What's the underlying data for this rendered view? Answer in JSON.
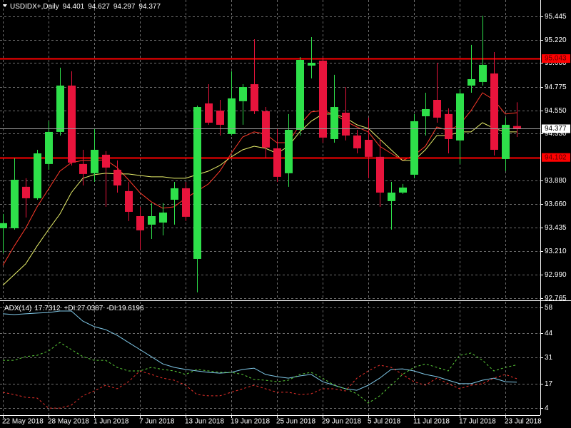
{
  "chart_data": [
    {
      "type": "candlestick",
      "title": "USDIDX+,Daily",
      "ohlc": {
        "open": [
          93.429,
          93.429,
          93.823,
          93.714,
          94.04,
          94.345,
          94.786,
          94.04,
          93.952,
          94.128,
          93.985,
          93.782,
          93.544,
          93.463,
          93.483,
          93.7,
          93.809,
          93.137,
          94.616,
          94.548,
          94.325,
          94.637,
          94.799,
          94.542,
          94.189,
          93.952,
          94.365,
          94.976,
          95.023,
          94.277,
          94.528,
          94.311,
          94.27,
          94.108,
          93.687,
          93.768,
          93.938,
          94.494,
          94.65,
          94.515,
          94.264,
          94.786,
          94.82,
          94.901,
          94.087,
          94.401
        ],
        "high": [
          93.565,
          94.094,
          93.904,
          94.175,
          94.447,
          94.956,
          94.922,
          94.175,
          94.379,
          94.162,
          94.074,
          93.87,
          93.633,
          93.667,
          93.667,
          93.87,
          93.87,
          94.596,
          94.799,
          94.65,
          94.922,
          94.799,
          95.227,
          94.582,
          94.379,
          94.515,
          95.057,
          95.247,
          95.057,
          94.888,
          94.772,
          94.365,
          94.481,
          94.277,
          93.87,
          93.85,
          94.515,
          94.718,
          95.003,
          94.569,
          94.752,
          95.173,
          95.451,
          95.105,
          94.481,
          94.627
        ],
        "low": [
          93.192,
          93.416,
          93.531,
          93.7,
          93.985,
          94.311,
          94.026,
          93.836,
          93.87,
          93.633,
          93.768,
          93.497,
          93.226,
          93.327,
          93.361,
          93.463,
          93.497,
          92.819,
          94.413,
          94.311,
          94.311,
          94.413,
          94.515,
          94.094,
          93.87,
          93.823,
          94.311,
          94.854,
          94.243,
          94.243,
          94.264,
          94.141,
          93.904,
          93.633,
          93.416,
          93.755,
          93.904,
          94.311,
          94.433,
          94.141,
          94.04,
          94.718,
          94.786,
          94.121,
          93.972,
          94.297
        ],
        "close": [
          93.477,
          93.89,
          93.714,
          94.141,
          94.345,
          94.786,
          94.053,
          93.945,
          94.175,
          94.006,
          93.836,
          93.585,
          93.409,
          93.544,
          93.578,
          93.809,
          93.538,
          94.582,
          94.433,
          94.413,
          94.664,
          94.772,
          94.542,
          94.196,
          93.918,
          94.365,
          95.03,
          95.003,
          94.291,
          94.582,
          94.311,
          94.189,
          94.108,
          93.768,
          93.768,
          93.816,
          94.447,
          94.562,
          94.481,
          94.277,
          94.711,
          94.847,
          94.983,
          94.175,
          94.413,
          94.377
        ],
        "up_color": "#2ee04a",
        "down_color": "#e8143c"
      },
      "lines": [
        {
          "color": "#ff3a2a",
          "values": [
            93.076,
            93.26,
            93.429,
            93.633,
            93.802,
            93.972,
            94.053,
            94.074,
            94.074,
            94.08,
            94.006,
            93.89,
            93.768,
            93.68,
            93.619,
            93.633,
            93.714,
            93.782,
            93.85,
            93.972,
            94.141,
            94.297,
            94.345,
            94.325,
            94.243,
            94.243,
            94.413,
            94.535,
            94.548,
            94.515,
            94.447,
            94.392,
            94.345,
            94.209,
            94.141,
            94.074,
            94.121,
            94.209,
            94.392,
            94.359,
            94.413,
            94.548,
            94.718,
            94.65,
            94.515,
            94.528
          ]
        },
        {
          "color": "#e8ef6a",
          "values": [
            92.886,
            92.988,
            93.09,
            93.26,
            93.416,
            93.565,
            93.768,
            93.904,
            93.938,
            93.952,
            93.945,
            93.945,
            93.931,
            93.918,
            93.918,
            93.904,
            93.904,
            93.938,
            93.972,
            94.026,
            94.108,
            94.175,
            94.209,
            94.189,
            94.141,
            94.209,
            94.345,
            94.447,
            94.515,
            94.515,
            94.481,
            94.413,
            94.379,
            94.277,
            94.175,
            94.074,
            94.074,
            94.175,
            94.311,
            94.311,
            94.345,
            94.345,
            94.433,
            94.379,
            94.345,
            94.345
          ]
        }
      ],
      "hlines": [
        {
          "value": 95.043,
          "color": "#ff0000"
        },
        {
          "value": 94.102,
          "color": "#ff0000"
        }
      ],
      "last_price_color": "#9a9a9a",
      "ylim": [
        92.75,
        95.6
      ],
      "yticks": [
        95.445,
        {
          "value": 95.22,
          "label": "95.220"
        },
        {
          "value": 95,
          "label": "95.000"
        },
        94.775,
        {
          "value": 94.55,
          "label": "94.550"
        },
        {
          "value": 94.33,
          "label": "94.330"
        },
        {
          "value": 93.88,
          "label": "93.880"
        },
        {
          "value": 93.66,
          "label": "93.660"
        },
        93.435,
        {
          "value": 93.21,
          "label": "93.210"
        },
        {
          "value": 92.99,
          "label": "92.990"
        },
        92.765
      ],
      "grid": true
    },
    {
      "type": "line",
      "categories": [
        "22 May 2018",
        null,
        null,
        null,
        "28 May 2018",
        null,
        null,
        null,
        "1 Jun 2018",
        null,
        null,
        null,
        "7 Jun 2018",
        null,
        null,
        null,
        "13 Jun 2018",
        null,
        null,
        null,
        "19 Jun 2018",
        null,
        null,
        null,
        "25 Jun 2018",
        null,
        null,
        null,
        "29 Jun 2018",
        null,
        null,
        null,
        "5 Jul 2018",
        null,
        null,
        null,
        "11 Jul 2018",
        null,
        null,
        null,
        "17 Jul 2018",
        null,
        null,
        null,
        "23 Jul 2018",
        null
      ],
      "series": [
        {
          "name": "ADX(14)",
          "color": "#7fc8e8",
          "style": "solid",
          "values": [
            54.5,
            54.1,
            54.5,
            54.9,
            55.2,
            56.0,
            56.0,
            50.6,
            47.6,
            46.0,
            43.0,
            39.1,
            35.3,
            31.5,
            27.6,
            25.7,
            24.6,
            23.8,
            23.0,
            22.6,
            23.0,
            24.6,
            25.3,
            21.9,
            20.7,
            19.9,
            21.1,
            21.9,
            18.0,
            16.1,
            14.2,
            13.4,
            16.1,
            19.9,
            24.6,
            24.9,
            23.8,
            21.9,
            20.7,
            18.8,
            16.9,
            16.9,
            18.8,
            19.9,
            18.0,
            17.7312
          ]
        },
        {
          "name": "+DI:",
          "color": "#5ccf3a",
          "style": "dashed",
          "values": [
            29.5,
            29.5,
            31.5,
            32.2,
            34.5,
            39.1,
            35.3,
            31.5,
            29.5,
            29.5,
            25.7,
            23.8,
            23.8,
            25.7,
            24.6,
            23.8,
            21.9,
            24.6,
            23.8,
            23.0,
            23.0,
            21.9,
            19.2,
            18.8,
            18.0,
            18.8,
            21.9,
            23.0,
            19.9,
            16.1,
            14.2,
            11.5,
            6.5,
            10.4,
            16.1,
            21.9,
            25.7,
            27.6,
            25.7,
            23.8,
            32.2,
            33.4,
            29.5,
            23.8,
            25.7,
            27.0387
          ]
        },
        {
          "name": "-DI:",
          "color": "#e8302a",
          "style": "dashed",
          "values": [
            12.3,
            11.1,
            9.6,
            9.2,
            3.8,
            3.8,
            5.4,
            10.4,
            13.0,
            16.1,
            14.2,
            18.0,
            23.8,
            21.9,
            19.9,
            18.8,
            16.1,
            11.1,
            10.4,
            10.4,
            12.3,
            14.2,
            16.1,
            14.2,
            12.3,
            12.3,
            11.1,
            11.5,
            14.2,
            14.2,
            13.0,
            19.9,
            23.8,
            26.9,
            25.7,
            21.9,
            18.0,
            16.1,
            19.9,
            16.9,
            14.2,
            16.1,
            16.9,
            19.9,
            21.9,
            19.6196
          ]
        }
      ],
      "ylim": [
        0,
        61
      ],
      "yticks": [
        4,
        17,
        31,
        44,
        58
      ],
      "grid": true
    }
  ]
}
